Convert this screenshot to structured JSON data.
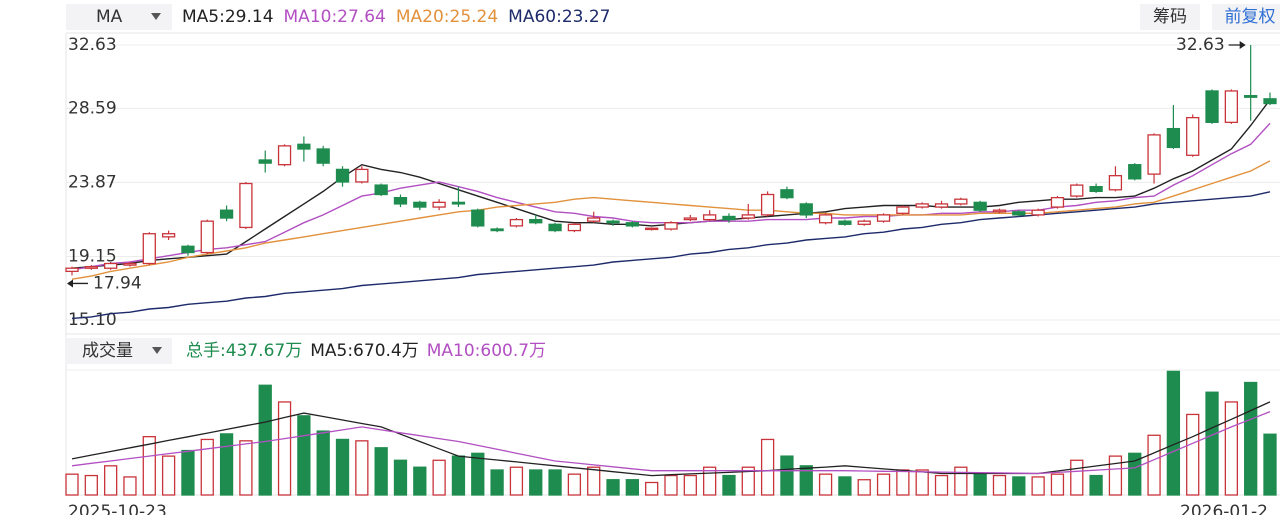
{
  "header": {
    "indicator": "MA",
    "buttons": [
      "筹码",
      "前复权"
    ]
  },
  "chart_data": [
    {
      "type": "candlestick",
      "title": "MA",
      "up_color": "#c9343a",
      "down_color": "#1f8c4f",
      "open": [
        18.2,
        18.4,
        18.4,
        18.6,
        18.7,
        20.4,
        19.8,
        19.4,
        22.1,
        21.0,
        25.3,
        25.0,
        26.3,
        26.0,
        24.7,
        23.9,
        23.7,
        22.9,
        22.6,
        22.3,
        22.6,
        22.1,
        20.9,
        21.1,
        21.5,
        21.2,
        20.8,
        21.4,
        21.4,
        21.3,
        20.9,
        20.9,
        21.5,
        21.5,
        21.7,
        21.6,
        21.8,
        23.4,
        22.5,
        21.3,
        21.4,
        21.2,
        21.4,
        21.9,
        22.3,
        22.3,
        22.5,
        22.6,
        22.0,
        22.0,
        21.8,
        22.3,
        23.0,
        23.6,
        23.4,
        25.0,
        24.4,
        27.3,
        25.6,
        29.7,
        27.7,
        29.4,
        29.2
      ],
      "high": [
        18.5,
        18.6,
        18.8,
        18.8,
        20.7,
        20.8,
        19.9,
        21.5,
        22.4,
        23.9,
        25.9,
        26.3,
        26.8,
        26.2,
        24.9,
        24.9,
        23.8,
        23.1,
        22.7,
        22.8,
        23.6,
        22.2,
        21.0,
        21.6,
        21.8,
        21.3,
        21.3,
        22.0,
        21.5,
        21.4,
        21.0,
        21.4,
        21.8,
        22.1,
        21.9,
        22.5,
        23.3,
        23.6,
        22.6,
        21.9,
        21.5,
        21.5,
        21.9,
        22.4,
        22.6,
        22.7,
        22.9,
        22.7,
        22.2,
        22.1,
        22.2,
        23.0,
        23.8,
        23.8,
        24.9,
        25.1,
        27.0,
        28.8,
        28.2,
        29.8,
        29.8,
        32.63,
        29.6
      ],
      "low": [
        17.94,
        18.3,
        18.3,
        18.5,
        18.6,
        20.2,
        19.2,
        19.3,
        21.4,
        20.9,
        24.5,
        24.9,
        25.2,
        24.9,
        23.6,
        23.8,
        23.0,
        22.3,
        22.1,
        22.1,
        22.3,
        21.0,
        20.7,
        21.0,
        21.2,
        20.7,
        20.7,
        21.3,
        21.1,
        21.0,
        20.8,
        20.8,
        21.4,
        21.4,
        21.3,
        21.5,
        21.7,
        22.8,
        21.6,
        21.2,
        21.1,
        21.1,
        21.3,
        21.8,
        22.2,
        22.2,
        22.4,
        22.0,
        21.9,
        21.7,
        21.7,
        22.2,
        22.9,
        23.2,
        23.3,
        24.0,
        23.8,
        26.0,
        25.5,
        27.6,
        27.6,
        27.8,
        28.8
      ],
      "close": [
        18.4,
        18.5,
        18.7,
        18.7,
        20.6,
        20.6,
        19.4,
        21.4,
        21.6,
        23.8,
        25.1,
        26.2,
        26.0,
        25.1,
        23.9,
        24.7,
        23.1,
        22.5,
        22.3,
        22.6,
        22.5,
        21.1,
        20.8,
        21.5,
        21.3,
        20.8,
        21.2,
        21.6,
        21.3,
        21.1,
        20.95,
        21.3,
        21.6,
        21.8,
        21.5,
        21.8,
        23.1,
        22.9,
        21.8,
        21.8,
        21.2,
        21.4,
        21.8,
        22.3,
        22.5,
        22.5,
        22.8,
        22.1,
        22.1,
        21.8,
        22.1,
        22.9,
        23.7,
        23.3,
        24.3,
        24.1,
        26.9,
        26.1,
        28.0,
        27.7,
        29.7,
        29.3,
        28.9
      ],
      "ylim": [
        15.1,
        32.63
      ],
      "yticks": [
        32.63,
        28.59,
        23.87,
        19.15,
        {
          "value": 15.1,
          "label": "15.10"
        }
      ],
      "grid": true,
      "series": [
        {
          "name": "MA5:29.14",
          "color": "#222222",
          "values": [
            18.4,
            18.5,
            18.6,
            18.7,
            18.9,
            19.0,
            19.1,
            19.2,
            19.3,
            20.1,
            20.9,
            21.7,
            22.5,
            23.3,
            24.2,
            25.0,
            24.7,
            24.5,
            24.2,
            23.8,
            23.4,
            23.0,
            22.6,
            22.2,
            21.8,
            21.4,
            21.3,
            21.3,
            21.2,
            21.2,
            21.1,
            21.2,
            21.3,
            21.4,
            21.5,
            21.6,
            21.7,
            21.8,
            21.9,
            22.0,
            22.2,
            22.3,
            22.4,
            22.4,
            22.4,
            22.3,
            22.3,
            22.3,
            22.4,
            22.6,
            22.7,
            22.8,
            22.8,
            22.9,
            22.9,
            23.0,
            23.5,
            24.1,
            24.6,
            25.3,
            26.0,
            27.5,
            29.14
          ]
        },
        {
          "name": "MA10:27.64",
          "color": "#b24fc2",
          "values": [
            18.3,
            18.5,
            18.7,
            18.8,
            19.0,
            19.2,
            19.4,
            19.6,
            19.7,
            19.9,
            20.1,
            20.7,
            21.3,
            21.8,
            22.4,
            23.0,
            23.2,
            23.5,
            23.7,
            23.9,
            23.6,
            23.3,
            22.9,
            22.6,
            22.3,
            22.0,
            21.9,
            21.7,
            21.6,
            21.4,
            21.3,
            21.3,
            21.3,
            21.4,
            21.4,
            21.4,
            21.5,
            21.5,
            21.5,
            21.6,
            21.6,
            21.7,
            21.7,
            21.8,
            21.8,
            21.9,
            21.9,
            22.0,
            22.0,
            22.1,
            22.1,
            22.3,
            22.4,
            22.6,
            22.7,
            22.9,
            23.0,
            23.7,
            24.3,
            25.0,
            25.7,
            26.3,
            27.64
          ]
        },
        {
          "name": "MA20:25.24",
          "color": "#e2913c",
          "values": [
            17.7,
            17.9,
            18.2,
            18.4,
            18.6,
            18.8,
            19.1,
            19.3,
            19.5,
            19.7,
            20.0,
            20.2,
            20.4,
            20.6,
            20.8,
            21.0,
            21.2,
            21.4,
            21.6,
            21.8,
            22.0,
            22.1,
            22.3,
            22.4,
            22.5,
            22.6,
            22.8,
            22.9,
            22.8,
            22.7,
            22.6,
            22.5,
            22.4,
            22.3,
            22.2,
            22.1,
            22.1,
            22.0,
            21.9,
            21.9,
            21.8,
            21.8,
            21.8,
            21.8,
            21.8,
            21.8,
            21.8,
            21.9,
            21.9,
            21.9,
            21.9,
            22.0,
            22.1,
            22.2,
            22.3,
            22.5,
            22.6,
            23.0,
            23.4,
            23.8,
            24.2,
            24.6,
            25.24
          ]
        },
        {
          "name": "MA60:23.27",
          "color": "#1d2a6b",
          "values": [
            15.2,
            15.3,
            15.5,
            15.6,
            15.8,
            15.9,
            16.1,
            16.2,
            16.3,
            16.5,
            16.6,
            16.8,
            16.9,
            17.0,
            17.1,
            17.3,
            17.4,
            17.5,
            17.6,
            17.7,
            17.8,
            18.0,
            18.1,
            18.2,
            18.3,
            18.4,
            18.5,
            18.6,
            18.8,
            18.9,
            19.0,
            19.1,
            19.3,
            19.4,
            19.6,
            19.7,
            19.9,
            20.0,
            20.2,
            20.3,
            20.4,
            20.6,
            20.7,
            20.9,
            21.0,
            21.2,
            21.3,
            21.5,
            21.6,
            21.7,
            21.8,
            21.9,
            22.0,
            22.1,
            22.2,
            22.3,
            22.5,
            22.6,
            22.7,
            22.8,
            22.9,
            23.0,
            23.27
          ]
        }
      ]
    },
    {
      "type": "volume",
      "title": "成交量",
      "total_label": "总手:437.67万",
      "values": [
        150,
        140,
        210,
        130,
        420,
        280,
        320,
        400,
        440,
        390,
        790,
        670,
        570,
        460,
        400,
        390,
        340,
        250,
        200,
        250,
        280,
        300,
        180,
        200,
        180,
        180,
        150,
        200,
        110,
        110,
        90,
        140,
        140,
        200,
        140,
        200,
        400,
        280,
        210,
        150,
        130,
        110,
        150,
        180,
        180,
        140,
        200,
        150,
        140,
        130,
        130,
        150,
        250,
        140,
        280,
        300,
        430,
        890,
        580,
        740,
        670,
        810,
        437.67
      ],
      "ylim": [
        0,
        900
      ],
      "x_tick_labels": [
        "2025-10-23",
        "2026-01-2"
      ],
      "series": [
        {
          "name": "MA5:670.4万",
          "color": "#222222",
          "values": [
            260,
            287,
            313,
            340,
            366,
            393,
            419,
            446,
            472,
            499,
            525,
            558,
            590,
            565,
            540,
            515,
            490,
            438,
            385,
            333,
            280,
            266,
            252,
            238,
            224,
            210,
            196,
            182,
            168,
            154,
            140,
            146,
            152,
            158,
            163,
            169,
            175,
            184,
            193,
            201,
            210,
            199,
            188,
            177,
            166,
            155,
            155,
            155,
            155,
            155,
            155,
            173,
            191,
            209,
            227,
            245,
            303,
            362,
            420,
            483,
            545,
            608,
            670.4
          ]
        },
        {
          "name": "MA10:600.7万",
          "color": "#b24fc2",
          "values": [
            210,
            228,
            245,
            263,
            280,
            298,
            315,
            333,
            350,
            368,
            385,
            406,
            427,
            448,
            469,
            490,
            469,
            448,
            427,
            406,
            385,
            357,
            329,
            301,
            273,
            245,
            231,
            217,
            203,
            189,
            175,
            175,
            175,
            175,
            175,
            175,
            175,
            175,
            175,
            175,
            175,
            173,
            171,
            169,
            167,
            165,
            163,
            161,
            159,
            157,
            155,
            163,
            171,
            179,
            187,
            195,
            254,
            313,
            372,
            431,
            490,
            545,
            600.7
          ]
        }
      ]
    }
  ]
}
